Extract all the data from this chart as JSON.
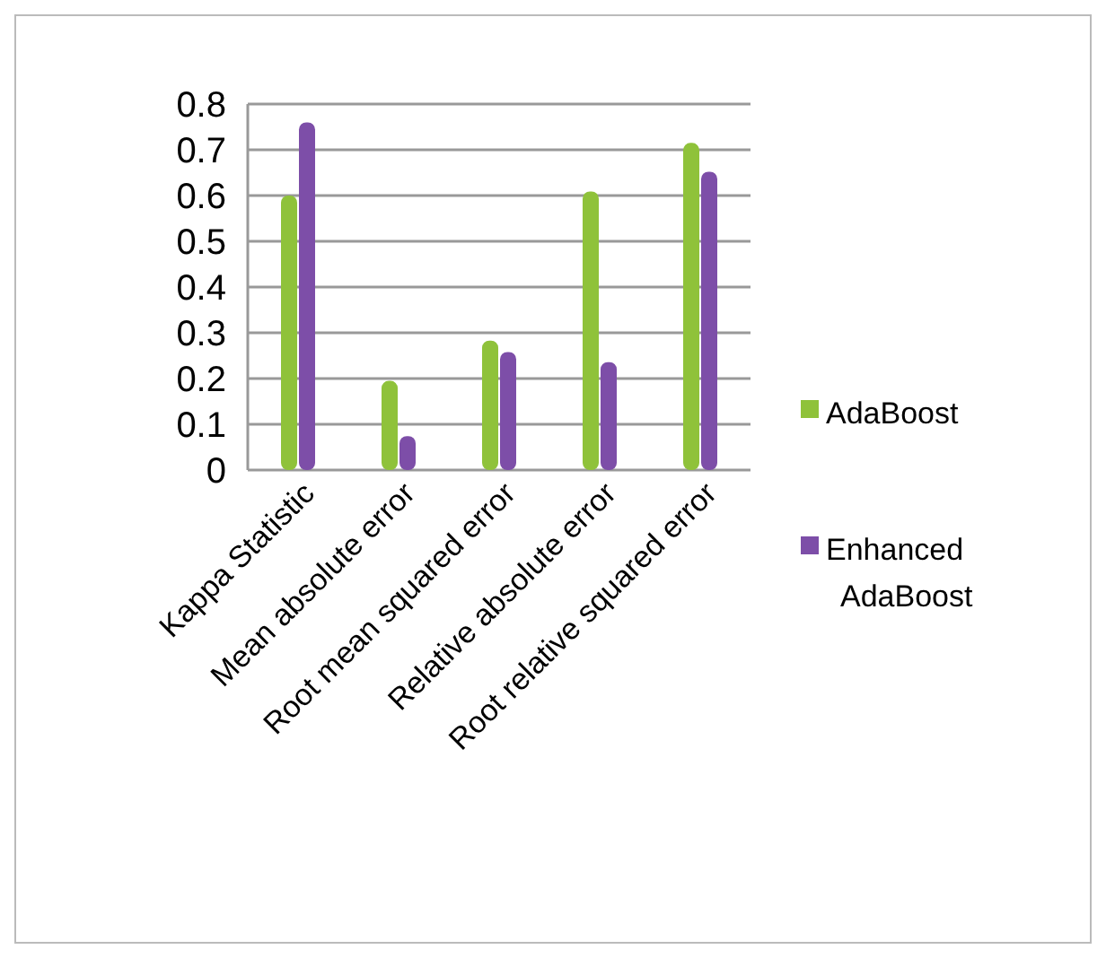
{
  "chart_data": {
    "type": "bar",
    "categories": [
      "Kappa Statistic",
      "Mean absolute error",
      "Root mean squared error",
      "Relative absolute error",
      "Root relative squared error"
    ],
    "series": [
      {
        "name": "AdaBoost",
        "color": "#8fc23a",
        "values": [
          0.6,
          0.195,
          0.283,
          0.609,
          0.715
        ]
      },
      {
        "name": "Enhanced AdaBoost",
        "color": "#7d4ea8",
        "values": [
          0.76,
          0.074,
          0.258,
          0.236,
          0.652
        ]
      }
    ],
    "ylim": [
      0,
      0.8
    ],
    "yticks": [
      0,
      0.1,
      0.2,
      0.3,
      0.4,
      0.5,
      0.6,
      0.7,
      0.8
    ],
    "grid": "y",
    "legend": "right"
  }
}
